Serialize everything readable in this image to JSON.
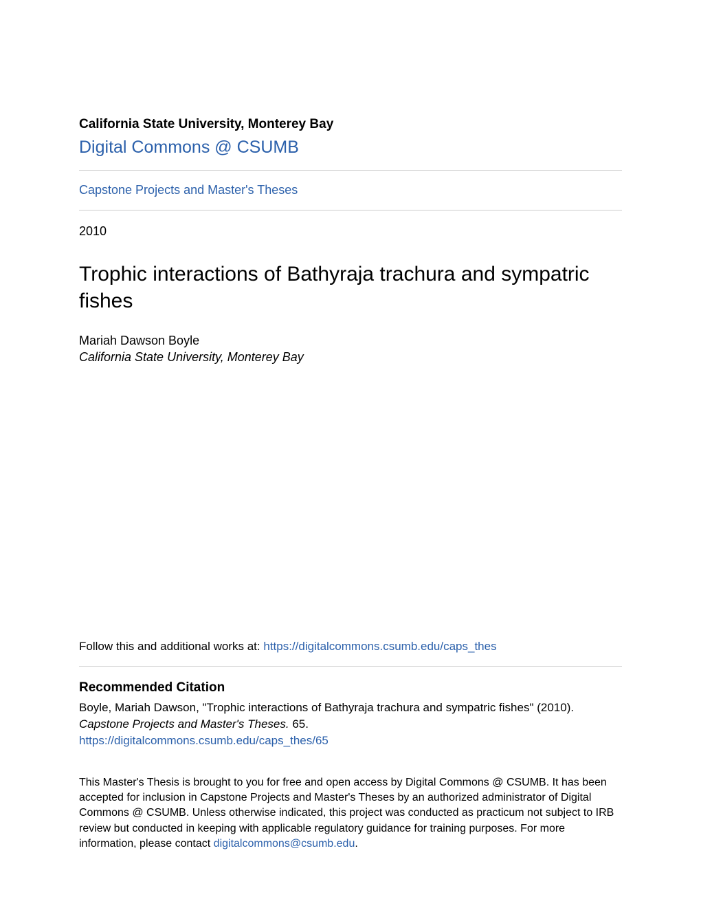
{
  "header": {
    "institution": "California State University, Monterey Bay",
    "repository_name": "Digital Commons @ CSUMB",
    "collection_name": "Capstone Projects and Master's Theses"
  },
  "document": {
    "year": "2010",
    "title": "Trophic interactions of Bathyraja trachura and sympatric fishes",
    "author": "Mariah Dawson Boyle",
    "affiliation": "California State University, Monterey Bay"
  },
  "follow": {
    "prefix": "Follow this and additional works at: ",
    "link_text": "https://digitalcommons.csumb.edu/caps_thes"
  },
  "citation": {
    "heading": "Recommended Citation",
    "text_part1": "Boyle, Mariah Dawson, \"Trophic interactions of Bathyraja trachura and sympatric fishes\" (2010). ",
    "text_italic": "Capstone Projects and Master's Theses.",
    "text_part2": " 65.",
    "link_text": "https://digitalcommons.csumb.edu/caps_thes/65"
  },
  "footer": {
    "text_part1": "This Master's Thesis is brought to you for free and open access by Digital Commons @ CSUMB. It has been accepted for inclusion in Capstone Projects and Master's Theses by an authorized administrator of Digital Commons @ CSUMB. Unless otherwise indicated, this project was conducted as practicum not subject to IRB review but conducted in keeping with applicable regulatory guidance for training purposes. For more information, please contact ",
    "email": "digitalcommons@csumb.edu",
    "text_part2": "."
  },
  "colors": {
    "link_color": "#2b60ab",
    "text_color": "#000000",
    "background": "#ffffff",
    "divider": "#cccccc"
  }
}
